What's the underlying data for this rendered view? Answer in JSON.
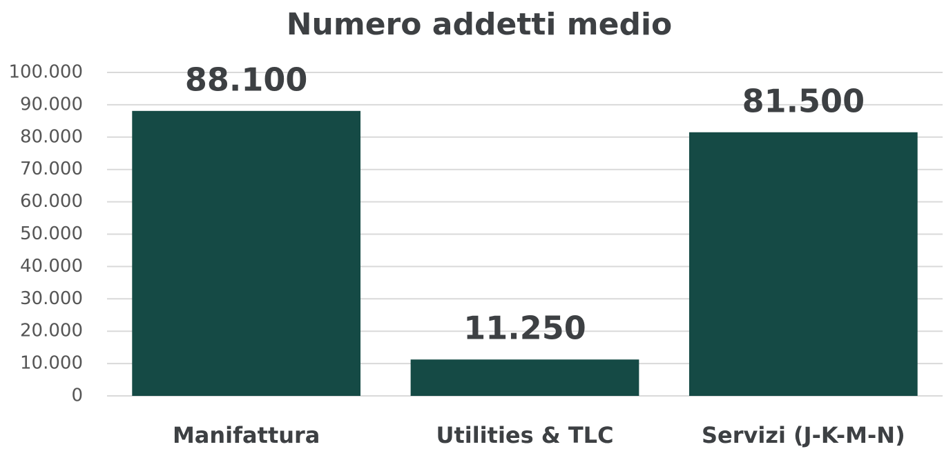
{
  "chart_data": {
    "type": "bar",
    "title": "Numero addetti medio",
    "categories": [
      "Manifattura",
      "Utilities & TLC",
      "Servizi (J-K-M-N)"
    ],
    "values": [
      88100,
      11250,
      81500
    ],
    "value_labels": [
      "88.100",
      "11.250",
      "81.500"
    ],
    "color": "#154a45",
    "ylim": [
      0,
      100000
    ],
    "yticks": [
      0,
      {
        "value": 10000,
        "label": "10.000"
      },
      {
        "value": 20000,
        "label": "20.000"
      },
      {
        "value": 30000,
        "label": "30.000"
      },
      {
        "value": 40000,
        "label": "40.000"
      },
      {
        "value": 50000,
        "label": "50.000"
      },
      {
        "value": 60000,
        "label": "60.000"
      },
      {
        "value": 70000,
        "label": "70.000"
      },
      {
        "value": 80000,
        "label": "80.000"
      },
      {
        "value": 90000,
        "label": "90.000"
      },
      {
        "value": 100000,
        "label": "100.000"
      }
    ],
    "grid": true
  }
}
